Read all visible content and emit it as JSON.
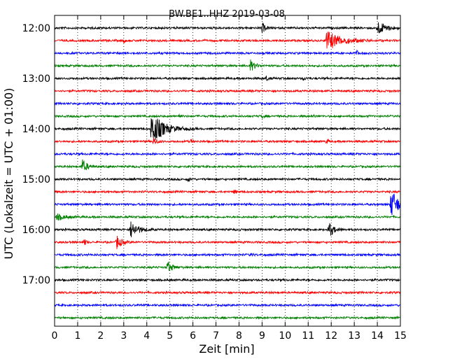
{
  "chart_data": {
    "type": "line",
    "title": "BW.BE1..HHZ 2019-03-08",
    "xlabel": "Zeit  [min]",
    "ylabel": "UTC (Lokalzeit = UTC + 01:00)",
    "xlim": [
      0,
      15
    ],
    "x_ticks": [
      "0",
      "1",
      "2",
      "3",
      "4",
      "5",
      "6",
      "7",
      "8",
      "9",
      "10",
      "11",
      "12",
      "13",
      "14",
      "15"
    ],
    "y_ticks": [
      "12:00",
      "13:00",
      "14:00",
      "15:00",
      "16:00",
      "17:00"
    ],
    "grid": "vertical dotted",
    "trace_colors": [
      "#000000",
      "#ff0000",
      "#0000ff",
      "#008000"
    ],
    "traces": [
      {
        "start": "12:00",
        "events": [
          {
            "t": 9.0,
            "amp": 8,
            "dur": 0.2
          },
          {
            "t": 14.0,
            "amp": 10,
            "dur": 0.6
          }
        ]
      },
      {
        "start": "12:15",
        "events": [
          {
            "t": 11.8,
            "amp": 14,
            "dur": 1.0
          },
          {
            "t": 3.0,
            "amp": 3,
            "dur": 0.1
          }
        ]
      },
      {
        "start": "12:30",
        "events": [
          {
            "t": 13.1,
            "amp": 4,
            "dur": 0.1
          }
        ]
      },
      {
        "start": "12:45",
        "events": [
          {
            "t": 8.5,
            "amp": 8,
            "dur": 0.3
          }
        ]
      },
      {
        "start": "13:00",
        "events": [
          {
            "t": 9.2,
            "amp": 4,
            "dur": 0.1
          },
          {
            "t": 10.8,
            "amp": 3,
            "dur": 0.1
          }
        ]
      },
      {
        "start": "13:15",
        "events": []
      },
      {
        "start": "13:30",
        "events": []
      },
      {
        "start": "13:45",
        "events": [
          {
            "t": 5.4,
            "amp": 3,
            "dur": 0.1
          },
          {
            "t": 9.0,
            "amp": 3,
            "dur": 0.1
          },
          {
            "t": 11.2,
            "amp": 3,
            "dur": 0.1
          }
        ]
      },
      {
        "start": "14:00",
        "events": [
          {
            "t": 4.2,
            "amp": 24,
            "dur": 0.8
          }
        ]
      },
      {
        "start": "14:15",
        "events": [
          {
            "t": 4.3,
            "amp": 6,
            "dur": 0.2
          },
          {
            "t": 5.9,
            "amp": 3,
            "dur": 0.1
          },
          {
            "t": 11.8,
            "amp": 4,
            "dur": 0.1
          }
        ]
      },
      {
        "start": "14:30",
        "events": []
      },
      {
        "start": "14:45",
        "events": [
          {
            "t": 1.2,
            "amp": 10,
            "dur": 0.3
          }
        ]
      },
      {
        "start": "15:00",
        "events": [
          {
            "t": 5.8,
            "amp": 3,
            "dur": 0.1
          }
        ]
      },
      {
        "start": "15:15",
        "events": [
          {
            "t": 7.8,
            "amp": 3,
            "dur": 0.1
          }
        ]
      },
      {
        "start": "15:30",
        "events": [
          {
            "t": 14.6,
            "amp": 22,
            "dur": 0.5
          }
        ]
      },
      {
        "start": "15:45",
        "events": [
          {
            "t": 0.1,
            "amp": 4,
            "dur": 0.6
          }
        ]
      },
      {
        "start": "16:00",
        "events": [
          {
            "t": 3.3,
            "amp": 12,
            "dur": 0.5
          },
          {
            "t": 11.9,
            "amp": 12,
            "dur": 0.3
          }
        ]
      },
      {
        "start": "16:15",
        "events": [
          {
            "t": 1.3,
            "amp": 5,
            "dur": 0.1
          },
          {
            "t": 2.7,
            "amp": 10,
            "dur": 0.3
          }
        ]
      },
      {
        "start": "16:30",
        "events": [
          {
            "t": 8.5,
            "amp": 3,
            "dur": 0.1
          }
        ]
      },
      {
        "start": "16:45",
        "events": [
          {
            "t": 4.9,
            "amp": 9,
            "dur": 0.3
          }
        ]
      },
      {
        "start": "17:00",
        "events": []
      },
      {
        "start": "17:15",
        "events": []
      },
      {
        "start": "17:30",
        "events": []
      },
      {
        "start": "17:45",
        "events": []
      }
    ]
  }
}
